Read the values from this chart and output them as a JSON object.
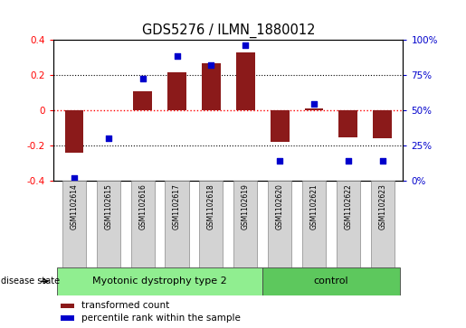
{
  "title": "GDS5276 / ILMN_1880012",
  "samples": [
    "GSM1102614",
    "GSM1102615",
    "GSM1102616",
    "GSM1102617",
    "GSM1102618",
    "GSM1102619",
    "GSM1102620",
    "GSM1102621",
    "GSM1102622",
    "GSM1102623"
  ],
  "bar_values": [
    -0.245,
    0.0,
    0.105,
    0.215,
    0.265,
    0.325,
    -0.18,
    0.01,
    -0.155,
    -0.16
  ],
  "dot_values": [
    2,
    30,
    72,
    88,
    82,
    96,
    14,
    54,
    14,
    14
  ],
  "bar_color": "#8B1A1A",
  "dot_color": "#0000CC",
  "ylim_left": [
    -0.4,
    0.4
  ],
  "ylim_right": [
    0,
    100
  ],
  "yticks_left": [
    -0.4,
    -0.2,
    0.0,
    0.2,
    0.4
  ],
  "yticks_right": [
    0,
    25,
    50,
    75,
    100
  ],
  "ytick_labels_right": [
    "0%",
    "25%",
    "50%",
    "75%",
    "100%"
  ],
  "hline_y": 0.0,
  "dotted_hlines": [
    -0.2,
    0.2
  ],
  "disease_groups": [
    {
      "label": "Myotonic dystrophy type 2",
      "start": 0,
      "end": 6,
      "color": "#90EE90"
    },
    {
      "label": "control",
      "start": 6,
      "end": 10,
      "color": "#5DC85D"
    }
  ],
  "disease_state_label": "disease state",
  "legend_items": [
    {
      "color": "#8B1A1A",
      "label": "transformed count"
    },
    {
      "color": "#0000CC",
      "label": "percentile rank within the sample"
    }
  ],
  "background_color": "#ffffff",
  "sample_box_color": "#D3D3D3",
  "bar_width": 0.55
}
